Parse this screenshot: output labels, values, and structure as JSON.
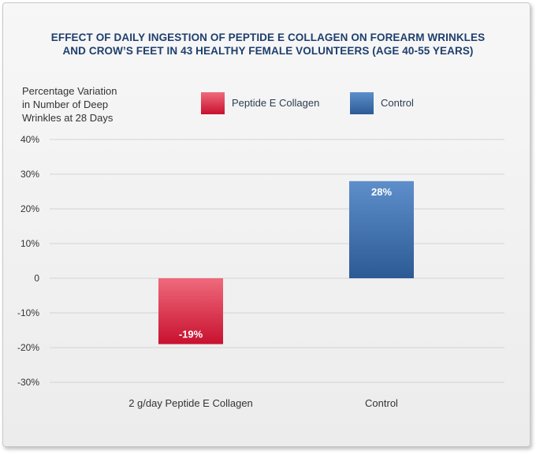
{
  "title_lines": [
    "EFFECT OF DAILY INGESTION OF PEPTIDE E COLLAGEN ON FOREARM WRINKLES",
    "AND CROW’S FEET IN 43 HEALTHY FEMALE VOLUNTEERS (AGE 40-55 YEARS)"
  ],
  "ylabel_lines": [
    "Percentage Variation",
    "in Number of Deep",
    "Wrinkles at 28 Days"
  ],
  "legend": [
    {
      "label": "Peptide E Collagen",
      "color_top": "#ef6a7c",
      "color_bottom": "#c8112f"
    },
    {
      "label": "Control",
      "color_top": "#5e8fca",
      "color_bottom": "#2c5a95"
    }
  ],
  "chart_data": {
    "type": "bar",
    "categories": [
      "2 g/day Peptide E Collagen",
      "Control"
    ],
    "values": [
      -19,
      28
    ],
    "value_labels": [
      "-19%",
      "28%"
    ],
    "ylim": [
      -30,
      40
    ],
    "yticks": [
      40,
      30,
      20,
      10,
      0,
      -10,
      -20,
      -30
    ],
    "ytick_labels": [
      "40%",
      "30%",
      "20%",
      "10%",
      "0",
      "-10%",
      "-20%",
      "-30%"
    ],
    "grid": true,
    "bar_colors": [
      {
        "top": "#ef6a7c",
        "bottom": "#c8112f"
      },
      {
        "top": "#5e8fca",
        "bottom": "#2c5a95"
      }
    ]
  }
}
